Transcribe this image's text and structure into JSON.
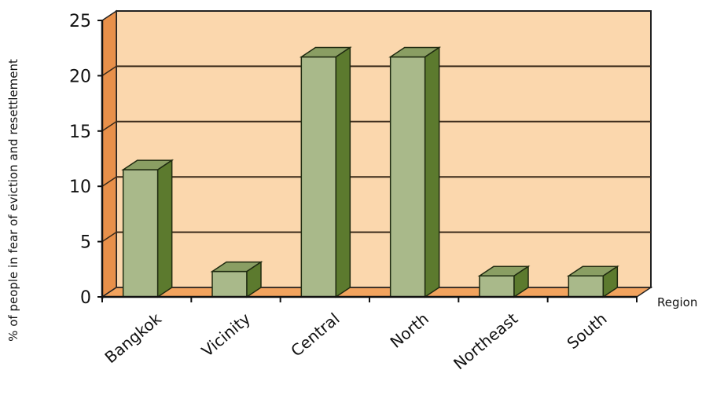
{
  "chart_data": {
    "type": "bar",
    "title": "",
    "xlabel": "Region",
    "ylabel": "% of people in fear of eviction and resettlement",
    "categories": [
      "Bangkok",
      "Vicinity",
      "Central",
      "North",
      "Northeast",
      "South"
    ],
    "values": [
      11.5,
      2.3,
      21.7,
      21.7,
      1.9,
      1.9
    ],
    "ylim": [
      0,
      25
    ],
    "yticks": [
      "0",
      "5",
      "10",
      "15",
      "20",
      "25"
    ],
    "grid": true,
    "legend": "none",
    "colors": {
      "wall": "#fbd7ad",
      "floor": "#f2a35e",
      "side_wall": "#e8904a",
      "bar_front": "#a9b98a",
      "bar_top": "#8a9e63",
      "bar_side": "#5c7a2e",
      "gridline": "#3a2a1a"
    }
  }
}
